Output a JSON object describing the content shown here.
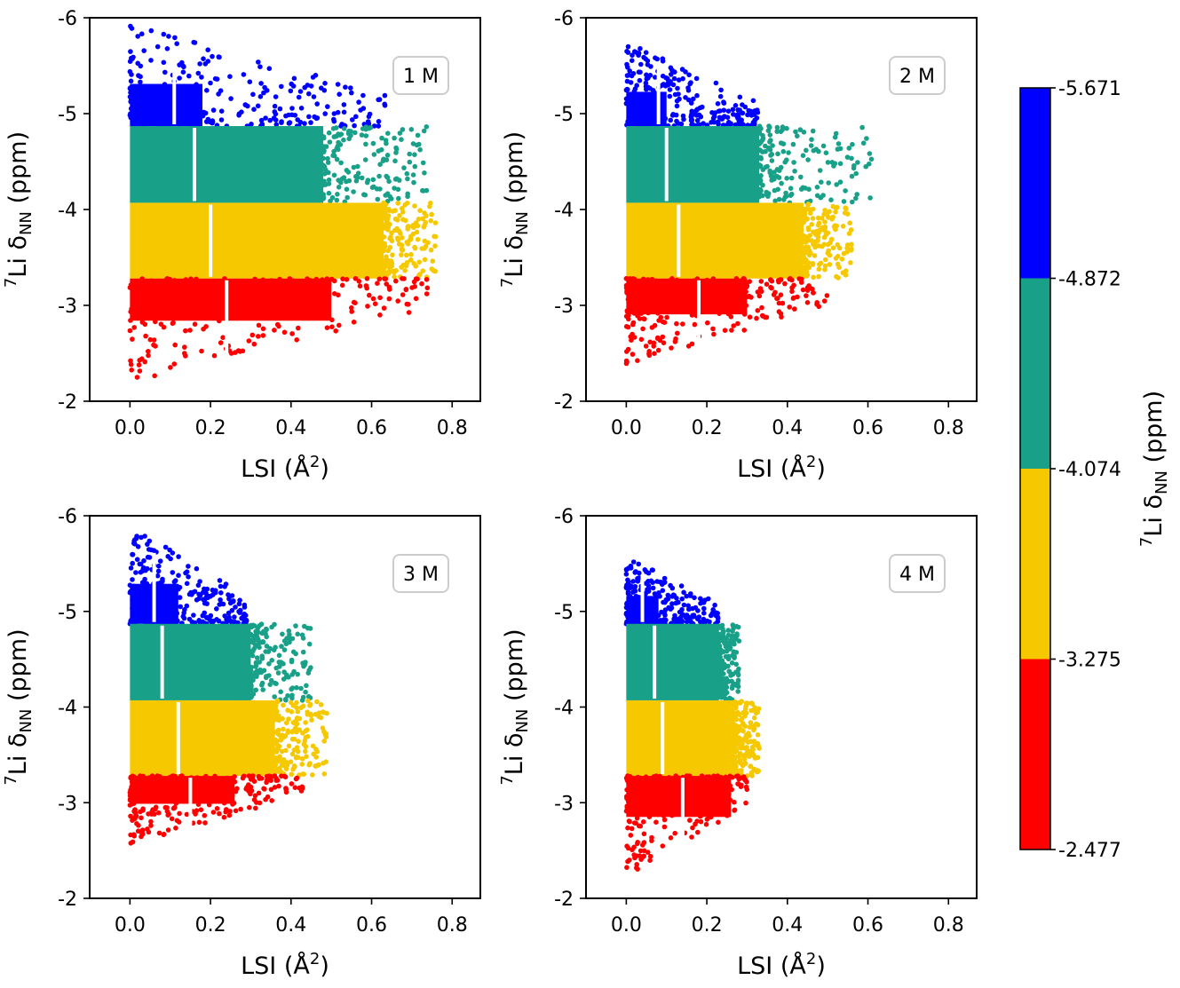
{
  "chart_data": {
    "type": "scatter",
    "xlabel_main": "LSI (Å",
    "xlabel_sup": "2",
    "xlabel_end": ")",
    "ylabel_sup": "7",
    "ylabel_main": "Li δ",
    "ylabel_sub": "NN",
    "ylabel_end": " (ppm)",
    "xlim": [
      -0.1,
      0.87
    ],
    "ylim": [
      -6,
      -2
    ],
    "y_inverted": true,
    "xticks": [
      "0.0",
      "0.2",
      "0.4",
      "0.6",
      "0.8"
    ],
    "xtick_values": [
      0.0,
      0.2,
      0.4,
      0.6,
      0.8
    ],
    "yticks": [
      "-6",
      "-5",
      "-4",
      "-3",
      "-2"
    ],
    "ytick_values": [
      -6,
      -5,
      -4,
      -3,
      -2
    ],
    "colorbar": {
      "ticks": [
        "-5.671",
        "-4.872",
        "-4.074",
        "-3.275",
        "-2.477"
      ],
      "bins": [
        {
          "from": -5.671,
          "to": -4.872,
          "color": "#0000ff"
        },
        {
          "from": -4.872,
          "to": -4.074,
          "color": "#18a088"
        },
        {
          "from": -4.074,
          "to": -3.275,
          "color": "#f5c800"
        },
        {
          "from": -3.275,
          "to": -2.477,
          "color": "#ff0000"
        }
      ],
      "label_sup": "7",
      "label_main": "Li δ",
      "label_sub": "NN",
      "label_end": " (ppm)"
    },
    "panels": [
      {
        "label": "1 M",
        "xmax": 0.76,
        "bands": [
          {
            "name": "blue",
            "ymin": -5.67,
            "ymax": -4.87,
            "core_xmax": 0.18,
            "tail_xmax": 0.64,
            "mean_lsi": 0.11
          },
          {
            "name": "green",
            "ymin": -4.87,
            "ymax": -4.07,
            "core_xmax": 0.48,
            "tail_xmax": 0.74,
            "mean_lsi": 0.16
          },
          {
            "name": "yellow",
            "ymin": -4.07,
            "ymax": -3.28,
            "core_xmax": 0.63,
            "tail_xmax": 0.76,
            "mean_lsi": 0.2
          },
          {
            "name": "red",
            "ymin": -3.28,
            "ymax": -2.48,
            "core_xmax": 0.5,
            "tail_xmax": 0.74,
            "mean_lsi": 0.24
          }
        ]
      },
      {
        "label": "2 M",
        "xmax": 0.61,
        "bands": [
          {
            "name": "blue",
            "ymin": -5.52,
            "ymax": -4.87,
            "core_xmax": 0.1,
            "tail_xmax": 0.33,
            "mean_lsi": 0.08
          },
          {
            "name": "green",
            "ymin": -4.87,
            "ymax": -4.07,
            "core_xmax": 0.33,
            "tail_xmax": 0.61,
            "mean_lsi": 0.1
          },
          {
            "name": "yellow",
            "ymin": -4.07,
            "ymax": -3.28,
            "core_xmax": 0.44,
            "tail_xmax": 0.56,
            "mean_lsi": 0.13
          },
          {
            "name": "red",
            "ymin": -3.28,
            "ymax": -2.6,
            "core_xmax": 0.3,
            "tail_xmax": 0.5,
            "mean_lsi": 0.18
          }
        ]
      },
      {
        "label": "3 M",
        "xmax": 0.49,
        "bands": [
          {
            "name": "blue",
            "ymin": -5.63,
            "ymax": -4.87,
            "core_xmax": 0.12,
            "tail_xmax": 0.29,
            "mean_lsi": 0.06
          },
          {
            "name": "green",
            "ymin": -4.87,
            "ymax": -4.07,
            "core_xmax": 0.3,
            "tail_xmax": 0.45,
            "mean_lsi": 0.08
          },
          {
            "name": "yellow",
            "ymin": -4.07,
            "ymax": -3.28,
            "core_xmax": 0.36,
            "tail_xmax": 0.49,
            "mean_lsi": 0.12
          },
          {
            "name": "red",
            "ymin": -3.28,
            "ymax": -2.75,
            "core_xmax": 0.26,
            "tail_xmax": 0.43,
            "mean_lsi": 0.15
          }
        ]
      },
      {
        "label": "4 M",
        "xmax": 0.33,
        "bands": [
          {
            "name": "blue",
            "ymin": -5.4,
            "ymax": -4.87,
            "core_xmax": 0.08,
            "tail_xmax": 0.23,
            "mean_lsi": 0.04
          },
          {
            "name": "green",
            "ymin": -4.87,
            "ymax": -4.07,
            "core_xmax": 0.23,
            "tail_xmax": 0.28,
            "mean_lsi": 0.07
          },
          {
            "name": "yellow",
            "ymin": -4.07,
            "ymax": -3.28,
            "core_xmax": 0.27,
            "tail_xmax": 0.33,
            "mean_lsi": 0.09
          },
          {
            "name": "red",
            "ymin": -3.28,
            "ymax": -2.5,
            "core_xmax": 0.26,
            "tail_xmax": 0.3,
            "mean_lsi": 0.14
          }
        ]
      }
    ]
  }
}
